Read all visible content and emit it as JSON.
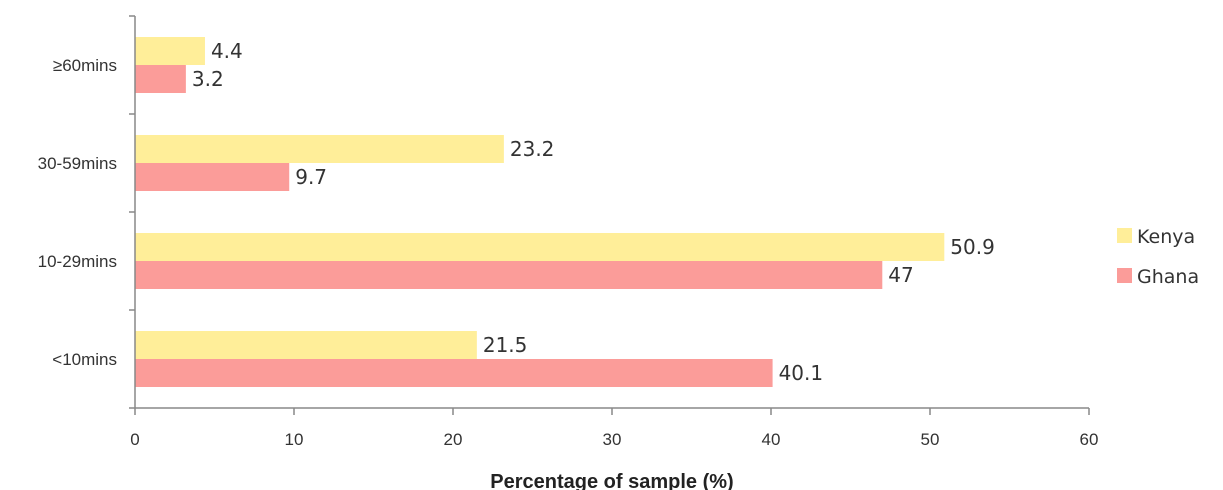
{
  "chart_data": {
    "type": "bar",
    "orientation": "horizontal",
    "categories": [
      "<10mins",
      "10-29mins",
      "30-59mins",
      "≥60mins"
    ],
    "series": [
      {
        "name": "Kenya",
        "values": [
          21.5,
          50.9,
          23.2,
          4.4
        ],
        "color": "#ffee99"
      },
      {
        "name": "Ghana",
        "values": [
          40.1,
          47,
          9.7,
          3.2
        ],
        "color": "#fb9c99"
      }
    ],
    "xlabel": "Percentage of sample (%)",
    "ylabel": "",
    "xlim": [
      0,
      60
    ],
    "xticks": [
      "0",
      "10",
      "20",
      "30",
      "40",
      "50",
      "60"
    ],
    "grid": false,
    "legend_position": "right"
  }
}
